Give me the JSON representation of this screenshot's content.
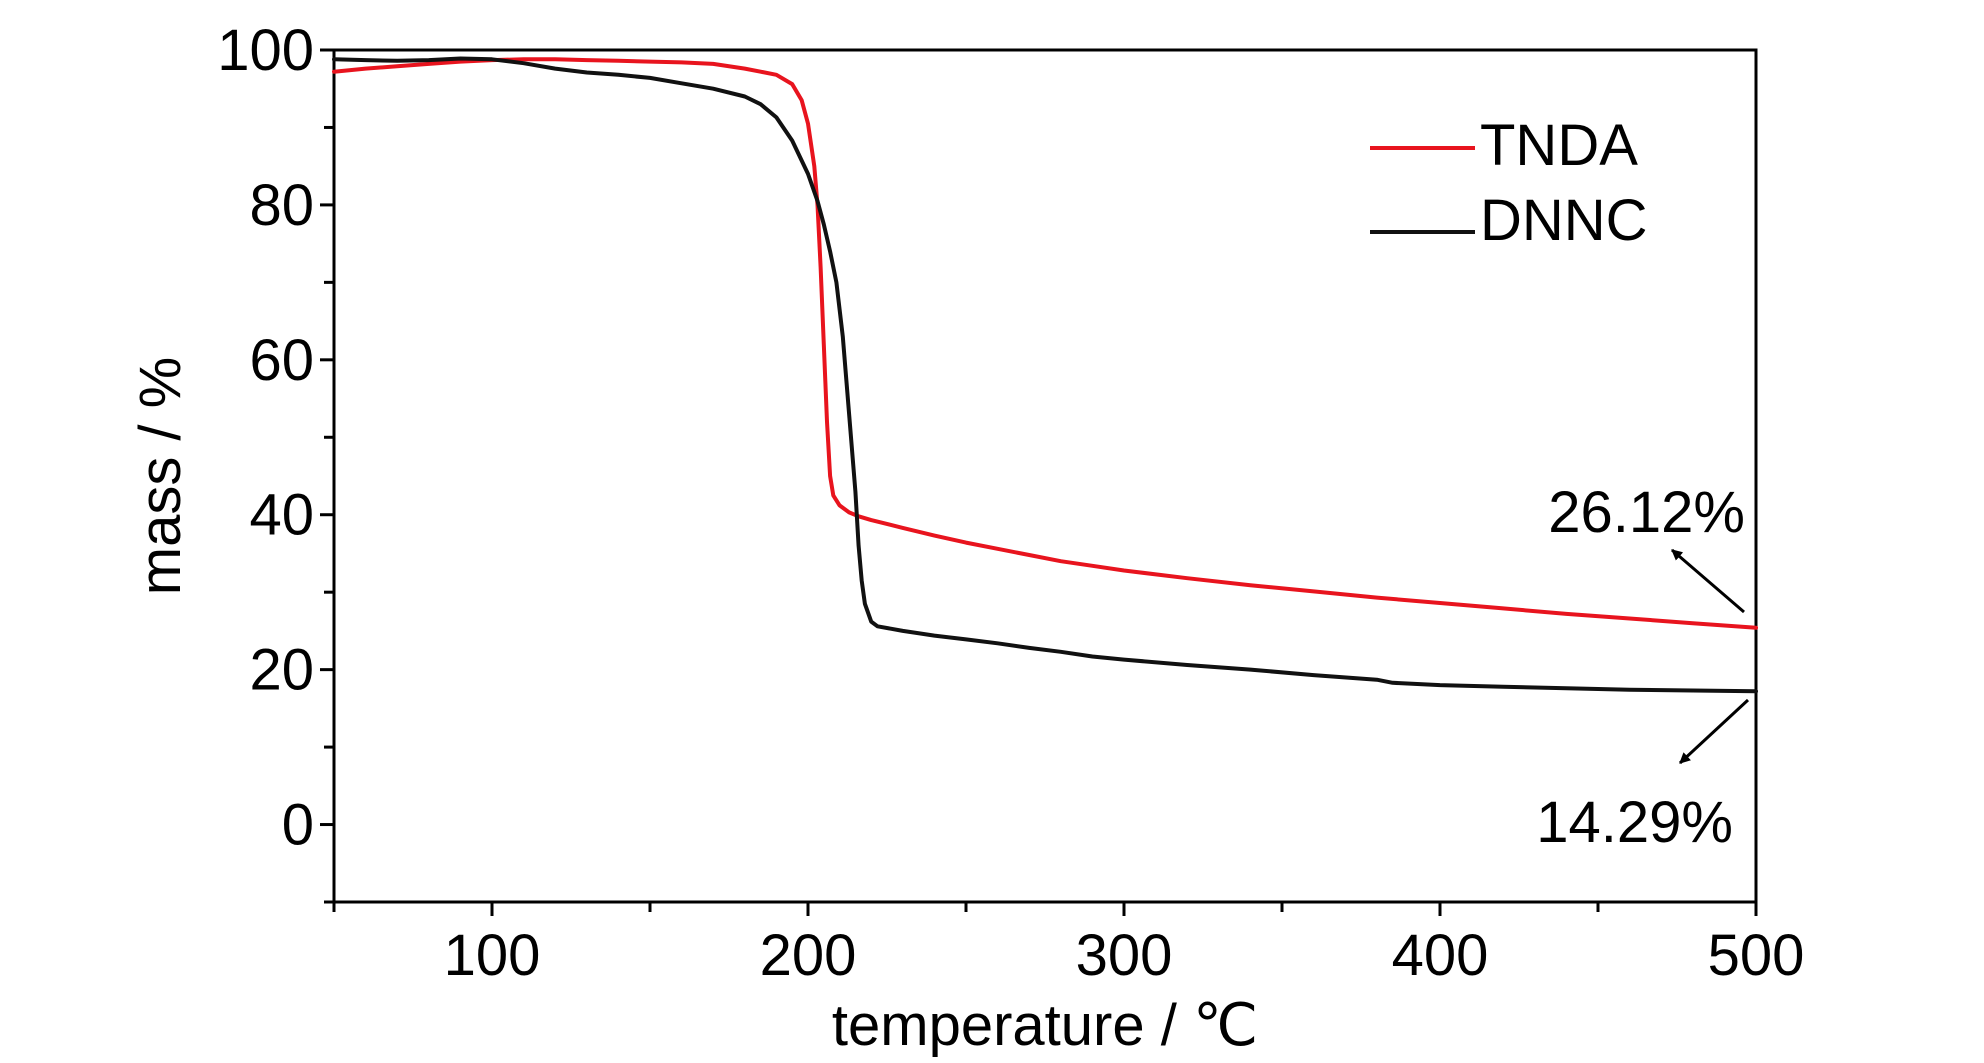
{
  "chart_data": {
    "type": "line",
    "xlabel": "temperature / ℃",
    "ylabel": "mass / %",
    "xlim": [
      50,
      500
    ],
    "ylim": [
      -10,
      100
    ],
    "x_ticks": [
      100,
      200,
      300,
      400,
      500
    ],
    "y_ticks": [
      0,
      20,
      40,
      60,
      80,
      100
    ],
    "grid": false,
    "legend": "top-right",
    "series": [
      {
        "name": "TNDA",
        "color": "#e8141e",
        "points": [
          [
            50,
            97.2
          ],
          [
            60,
            97.6
          ],
          [
            70,
            97.9
          ],
          [
            80,
            98.2
          ],
          [
            90,
            98.5
          ],
          [
            100,
            98.7
          ],
          [
            110,
            98.8
          ],
          [
            120,
            98.8
          ],
          [
            130,
            98.7
          ],
          [
            140,
            98.6
          ],
          [
            150,
            98.5
          ],
          [
            160,
            98.4
          ],
          [
            170,
            98.2
          ],
          [
            180,
            97.6
          ],
          [
            185,
            97.2
          ],
          [
            190,
            96.8
          ],
          [
            195,
            95.6
          ],
          [
            198,
            93.5
          ],
          [
            200,
            90.5
          ],
          [
            202,
            85.0
          ],
          [
            203,
            80.0
          ],
          [
            204,
            72.0
          ],
          [
            205,
            62.0
          ],
          [
            206,
            52.0
          ],
          [
            207,
            45.0
          ],
          [
            208,
            42.5
          ],
          [
            210,
            41.2
          ],
          [
            213,
            40.3
          ],
          [
            216,
            39.8
          ],
          [
            220,
            39.3
          ],
          [
            230,
            38.3
          ],
          [
            240,
            37.3
          ],
          [
            250,
            36.4
          ],
          [
            260,
            35.6
          ],
          [
            270,
            34.8
          ],
          [
            280,
            34.0
          ],
          [
            290,
            33.4
          ],
          [
            300,
            32.8
          ],
          [
            320,
            31.8
          ],
          [
            340,
            30.9
          ],
          [
            360,
            30.1
          ],
          [
            380,
            29.3
          ],
          [
            400,
            28.6
          ],
          [
            420,
            27.9
          ],
          [
            440,
            27.2
          ],
          [
            460,
            26.6
          ],
          [
            480,
            26.0
          ],
          [
            490,
            25.7
          ],
          [
            500,
            25.4
          ]
        ]
      },
      {
        "name": "DNNC",
        "color": "#111111",
        "points": [
          [
            50,
            98.8
          ],
          [
            60,
            98.7
          ],
          [
            70,
            98.6
          ],
          [
            80,
            98.7
          ],
          [
            90,
            98.9
          ],
          [
            100,
            98.8
          ],
          [
            110,
            98.3
          ],
          [
            120,
            97.6
          ],
          [
            130,
            97.1
          ],
          [
            140,
            96.8
          ],
          [
            150,
            96.4
          ],
          [
            160,
            95.7
          ],
          [
            170,
            95.0
          ],
          [
            180,
            94.0
          ],
          [
            185,
            93.0
          ],
          [
            190,
            91.3
          ],
          [
            195,
            88.3
          ],
          [
            200,
            84.0
          ],
          [
            203,
            80.5
          ],
          [
            205,
            77.5
          ],
          [
            207,
            74.0
          ],
          [
            209,
            70.0
          ],
          [
            211,
            63.0
          ],
          [
            213,
            53.0
          ],
          [
            215,
            43.0
          ],
          [
            216,
            36.0
          ],
          [
            217,
            31.5
          ],
          [
            218,
            28.5
          ],
          [
            220,
            26.2
          ],
          [
            222,
            25.6
          ],
          [
            230,
            25.0
          ],
          [
            240,
            24.4
          ],
          [
            250,
            23.9
          ],
          [
            260,
            23.4
          ],
          [
            270,
            22.8
          ],
          [
            280,
            22.3
          ],
          [
            290,
            21.7
          ],
          [
            300,
            21.3
          ],
          [
            320,
            20.6
          ],
          [
            340,
            20.0
          ],
          [
            360,
            19.3
          ],
          [
            380,
            18.7
          ],
          [
            385,
            18.3
          ],
          [
            400,
            18.0
          ],
          [
            420,
            17.8
          ],
          [
            440,
            17.6
          ],
          [
            460,
            17.4
          ],
          [
            480,
            17.3
          ],
          [
            500,
            17.2
          ]
        ]
      }
    ],
    "annotations": [
      {
        "text": "26.12%",
        "series": "TNDA"
      },
      {
        "text": "14.29%",
        "series": "DNNC"
      }
    ]
  }
}
